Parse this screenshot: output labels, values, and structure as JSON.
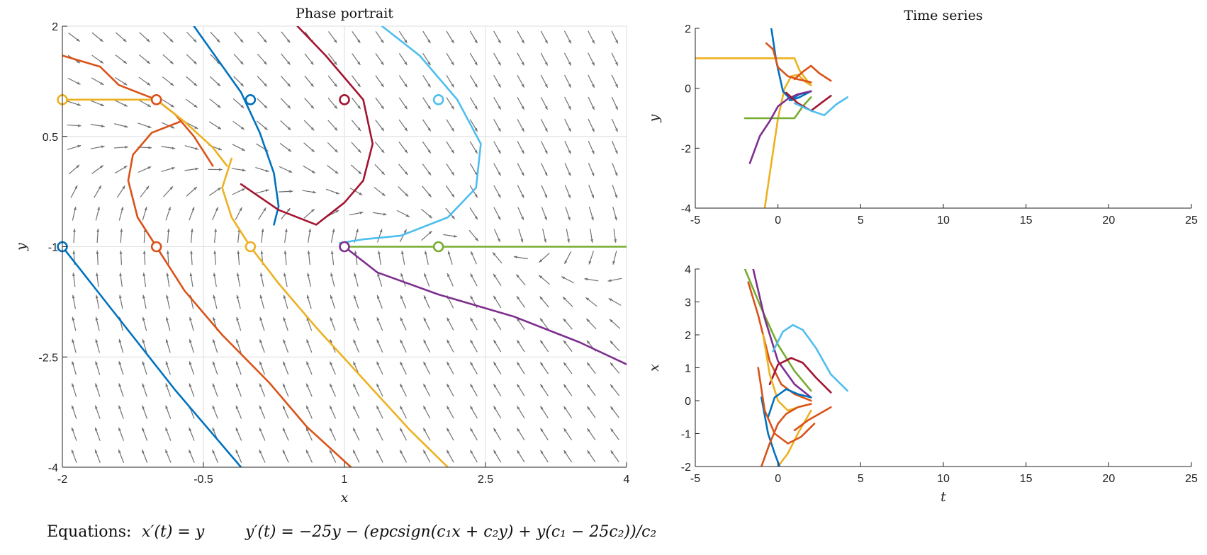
{
  "figure": {
    "equation_prefix": "Equations:",
    "equation_x": "x′(t) = y",
    "equation_y": "y′(t) = −25y − (epcsign(c₁x + c₂y) + y(c₁ − 25c₂))/c₂"
  },
  "colors": {
    "blue": "#0072BD",
    "orange": "#D95319",
    "yellow": "#EDB120",
    "darkred": "#A2142F",
    "lightblue": "#4DBEEE",
    "purple": "#7E2F8E",
    "green": "#77AC30",
    "arrow": "#707070",
    "grid": "#dedede"
  },
  "chart_data": [
    {
      "type": "line",
      "title": "Phase portrait",
      "xlabel": "x",
      "ylabel": "y",
      "xlim": [
        -2,
        4
      ],
      "ylim": [
        -4,
        2
      ],
      "x_ticks": [
        -2,
        -0.5,
        1,
        2.5,
        4
      ],
      "y_ticks": [
        -4,
        -2.5,
        -1,
        0.5,
        2
      ],
      "x_tick_labels": [
        "-2",
        "-0.5",
        "1",
        "2.5",
        "4"
      ],
      "y_tick_labels": [
        "-4",
        "-2.5",
        "-1",
        "0.5",
        "2"
      ],
      "grid": true,
      "direction_field": true,
      "series": [
        {
          "color": "blue",
          "x": [
            -0.6,
            -0.35,
            -0.1,
            0.1,
            0.25,
            0.3,
            0.25
          ],
          "y": [
            2,
            1.55,
            1.1,
            0.55,
            0,
            -0.45,
            -0.7
          ]
        },
        {
          "color": "blue",
          "x": [
            -2,
            -1.6,
            -1.2,
            -0.8,
            -0.4,
            -0.1
          ],
          "y": [
            -1,
            -1.65,
            -2.3,
            -2.95,
            -3.55,
            -4
          ]
        },
        {
          "color": "orange",
          "x": [
            -2,
            -1.6,
            -1.4,
            -1.0,
            -0.8,
            -0.6,
            -0.4
          ],
          "y": [
            1.6,
            1.45,
            1.2,
            1.0,
            0.8,
            0.5,
            0.1
          ]
        },
        {
          "color": "orange",
          "x": [
            -0.75,
            -1.05,
            -1.25,
            -1.3,
            -1.2,
            -1.0,
            -0.7,
            -0.3,
            0.2,
            0.6,
            1.07
          ],
          "y": [
            0.7,
            0.55,
            0.25,
            -0.1,
            -0.6,
            -1.0,
            -1.6,
            -2.2,
            -2.85,
            -3.45,
            -4
          ]
        },
        {
          "color": "yellow",
          "x": [
            -2,
            -1,
            -0.7,
            -0.4,
            -0.25
          ],
          "y": [
            1,
            1,
            0.7,
            0.35,
            0.1
          ]
        },
        {
          "color": "yellow",
          "x": [
            -0.2,
            -0.3,
            -0.2,
            0,
            0.3,
            0.7,
            1.2,
            1.7,
            2.1
          ],
          "y": [
            0.2,
            -0.2,
            -0.6,
            -1,
            -1.5,
            -2.1,
            -2.8,
            -3.5,
            -4
          ]
        },
        {
          "color": "darkred",
          "x": [
            0.5,
            0.8,
            1.2,
            1.3,
            1.2,
            1.0,
            0.7,
            0.3,
            -0.1
          ],
          "y": [
            2,
            1.6,
            1.0,
            0.4,
            -0.1,
            -0.4,
            -0.7,
            -0.5,
            -0.15
          ]
        },
        {
          "color": "lightblue",
          "x": [
            1.4,
            1.8,
            2.2,
            2.45,
            2.4,
            2.1,
            1.6,
            1.2,
            0.95
          ],
          "y": [
            2,
            1.6,
            1.0,
            0.4,
            -0.2,
            -0.6,
            -0.85,
            -0.9,
            -0.95
          ]
        },
        {
          "color": "purple",
          "x": [
            1,
            1.35,
            2.0,
            2.8,
            3.5,
            4
          ],
          "y": [
            -1,
            -1.35,
            -1.65,
            -1.95,
            -2.3,
            -2.6
          ]
        },
        {
          "color": "green",
          "x": [
            1,
            2,
            3,
            4
          ],
          "y": [
            -1,
            -1,
            -1,
            -1
          ]
        }
      ],
      "markers": [
        {
          "color": "yellow",
          "x": -2,
          "y": 1
        },
        {
          "color": "orange",
          "x": -1,
          "y": 1
        },
        {
          "color": "blue",
          "x": 0,
          "y": 1
        },
        {
          "color": "darkred",
          "x": 1,
          "y": 1
        },
        {
          "color": "lightblue",
          "x": 2,
          "y": 1
        },
        {
          "color": "blue",
          "x": -2,
          "y": -1
        },
        {
          "color": "orange",
          "x": -1,
          "y": -1
        },
        {
          "color": "yellow",
          "x": 0,
          "y": -1
        },
        {
          "color": "purple",
          "x": 1,
          "y": -1
        },
        {
          "color": "green",
          "x": 2,
          "y": -1
        }
      ]
    },
    {
      "type": "line",
      "title": "Time series",
      "xlabel": "",
      "ylabel": "y",
      "xlim": [
        -5,
        25
      ],
      "ylim": [
        -4,
        2
      ],
      "x_ticks": [
        -5,
        0,
        5,
        10,
        15,
        20,
        25
      ],
      "y_ticks": [
        -4,
        -2,
        0,
        2
      ],
      "x_tick_labels": [
        "-5",
        "0",
        "5",
        "10",
        "15",
        "20",
        "25"
      ],
      "y_tick_labels": [
        "-4",
        "-2",
        "0",
        "2"
      ],
      "series": [
        {
          "color": "yellow",
          "x": [
            -5,
            1,
            1.3,
            1.7,
            2
          ],
          "y": [
            1,
            1,
            0.6,
            0.3,
            0.1
          ]
        },
        {
          "color": "yellow",
          "x": [
            -0.8,
            -0.4,
            0,
            0.4,
            0.8,
            1.2,
            1.7,
            2
          ],
          "y": [
            -4,
            -2.5,
            -1,
            0,
            0.4,
            0.45,
            0.2,
            0.1
          ]
        },
        {
          "color": "blue",
          "x": [
            -0.4,
            -0.1,
            0.3,
            0.8,
            1.3,
            2
          ],
          "y": [
            2,
            0.9,
            -0.1,
            -0.4,
            -0.3,
            -0.1
          ]
        },
        {
          "color": "blue",
          "x": [
            0.7,
            1.3,
            2
          ],
          "y": [
            -0.4,
            -0.2,
            -0.1
          ]
        },
        {
          "color": "orange",
          "x": [
            -0.7,
            -0.3,
            0,
            0.6,
            1.2,
            2
          ],
          "y": [
            1.5,
            1.3,
            0.7,
            0.4,
            0.3,
            0.2
          ]
        },
        {
          "color": "orange",
          "x": [
            1,
            1.5,
            2,
            2.5,
            3.2
          ],
          "y": [
            0.3,
            0.55,
            0.75,
            0.5,
            0.25
          ]
        },
        {
          "color": "green",
          "x": [
            -2,
            1,
            1.5,
            2
          ],
          "y": [
            -1,
            -1,
            -0.6,
            -0.3
          ]
        },
        {
          "color": "purple",
          "x": [
            -1.7,
            -1.1,
            -0.5,
            0,
            0.6,
            1.2,
            2
          ],
          "y": [
            -2.5,
            -1.6,
            -1.1,
            -0.6,
            -0.35,
            -0.2,
            -0.1
          ]
        },
        {
          "color": "darkred",
          "x": [
            0.5,
            1.2,
            2,
            2.6,
            3.2
          ],
          "y": [
            -0.15,
            -0.5,
            -0.75,
            -0.5,
            -0.25
          ]
        },
        {
          "color": "lightblue",
          "x": [
            1,
            2,
            2.8,
            3.5,
            4.2
          ],
          "y": [
            -0.5,
            -0.75,
            -0.9,
            -0.55,
            -0.3
          ]
        }
      ]
    },
    {
      "type": "line",
      "title": "",
      "xlabel": "t",
      "ylabel": "x",
      "xlim": [
        -5,
        25
      ],
      "ylim": [
        -2,
        4
      ],
      "x_ticks": [
        -5,
        0,
        5,
        10,
        15,
        20,
        25
      ],
      "y_ticks": [
        -2,
        -1,
        0,
        1,
        2,
        3,
        4
      ],
      "x_tick_labels": [
        "-5",
        "0",
        "5",
        "10",
        "15",
        "20",
        "25"
      ],
      "y_tick_labels": [
        "-2",
        "-1",
        "0",
        "1",
        "2",
        "3",
        "4"
      ],
      "series": [
        {
          "color": "green",
          "x": [
            -2,
            -1,
            0,
            1,
            2
          ],
          "y": [
            4,
            2.8,
            1.7,
            0.9,
            0.3
          ]
        },
        {
          "color": "purple",
          "x": [
            -1.5,
            -0.8,
            0,
            1,
            2
          ],
          "y": [
            4,
            2.5,
            1.2,
            0.5,
            0.1
          ]
        },
        {
          "color": "orange",
          "x": [
            -1.8,
            -1.2,
            -0.5,
            0.2,
            1,
            2
          ],
          "y": [
            3.6,
            2.6,
            1.2,
            0.5,
            0.2,
            0
          ]
        },
        {
          "color": "lightblue",
          "x": [
            -0.3,
            0.3,
            0.9,
            1.5,
            2.3,
            3.2,
            4.2
          ],
          "y": [
            1.5,
            2.1,
            2.3,
            2.15,
            1.6,
            0.8,
            0.3
          ]
        },
        {
          "color": "darkred",
          "x": [
            -0.5,
            0,
            0.8,
            1.5,
            2.3,
            3.2
          ],
          "y": [
            0.5,
            1.1,
            1.3,
            1.15,
            0.7,
            0.25
          ]
        },
        {
          "color": "yellow",
          "x": [
            -0.9,
            -0.5,
            0,
            0.6,
            1.2,
            2
          ],
          "y": [
            2,
            0.8,
            0,
            -0.3,
            -0.2,
            -0.1
          ]
        },
        {
          "color": "yellow",
          "x": [
            0,
            0.6,
            1.2,
            2
          ],
          "y": [
            -2,
            -1.6,
            -1,
            -0.3
          ]
        },
        {
          "color": "blue",
          "x": [
            -0.6,
            -0.2,
            0.5,
            1.2,
            2
          ],
          "y": [
            -0.5,
            0.1,
            0.35,
            0.2,
            0.1
          ]
        },
        {
          "color": "blue",
          "x": [
            -1,
            -0.6,
            -0.2,
            0.1
          ],
          "y": [
            0.1,
            -1,
            -1.6,
            -2
          ]
        },
        {
          "color": "orange",
          "x": [
            -1.2,
            -0.8,
            -0.2,
            0.6,
            1.4,
            2.2
          ],
          "y": [
            1,
            -0.3,
            -1,
            -1.3,
            -1.1,
            -0.7
          ]
        },
        {
          "color": "orange",
          "x": [
            -1,
            -0.5,
            0,
            0.5,
            1.2,
            2
          ],
          "y": [
            -2,
            -1.3,
            -0.7,
            -0.4,
            -0.2,
            -0.1
          ]
        },
        {
          "color": "orange",
          "x": [
            1,
            1.8,
            2.5,
            3.2
          ],
          "y": [
            -0.9,
            -0.6,
            -0.4,
            -0.2
          ]
        }
      ]
    }
  ]
}
